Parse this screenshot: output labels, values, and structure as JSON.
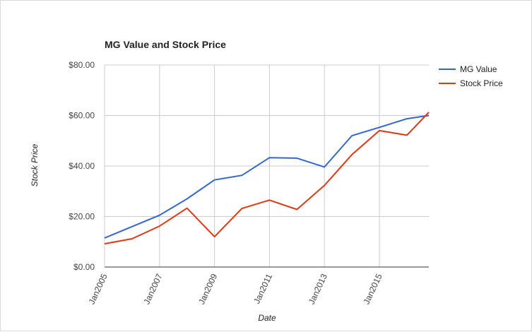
{
  "chart_data": {
    "type": "line",
    "title": "MG Value and Stock Price",
    "xlabel": "Date",
    "ylabel": "Stock Price",
    "x_ticks": [
      "Jan2005",
      "Jan2007",
      "Jan2009",
      "Jan2011",
      "Jan2013",
      "Jan2015"
    ],
    "y_ticks": [
      "$0.00",
      "$20.00",
      "$40.00",
      "$60.00",
      "$80.00"
    ],
    "ylim": [
      0,
      80
    ],
    "xlim": [
      2005.0,
      2016.8
    ],
    "grid": true,
    "legend_position": "right",
    "series": [
      {
        "name": "MG Value",
        "color": "#3366cc",
        "points": [
          [
            2005.0,
            11.5
          ],
          [
            2006.0,
            16.0
          ],
          [
            2007.0,
            20.5
          ],
          [
            2008.0,
            27.0
          ],
          [
            2009.0,
            34.5
          ],
          [
            2010.0,
            36.3
          ],
          [
            2011.0,
            43.3
          ],
          [
            2012.0,
            43.1
          ],
          [
            2013.0,
            39.6
          ],
          [
            2014.0,
            52.0
          ],
          [
            2015.0,
            55.3
          ],
          [
            2016.0,
            58.7
          ],
          [
            2016.8,
            60.0
          ]
        ]
      },
      {
        "name": "Stock Price",
        "color": "#dc3912",
        "points": [
          [
            2005.0,
            9.2
          ],
          [
            2006.0,
            11.2
          ],
          [
            2007.0,
            16.2
          ],
          [
            2008.0,
            23.3
          ],
          [
            2009.0,
            12.0
          ],
          [
            2010.0,
            23.2
          ],
          [
            2011.0,
            26.5
          ],
          [
            2012.0,
            22.8
          ],
          [
            2013.0,
            32.3
          ],
          [
            2014.0,
            44.5
          ],
          [
            2015.0,
            54.0
          ],
          [
            2016.0,
            52.2
          ],
          [
            2016.8,
            61.3
          ]
        ]
      }
    ]
  }
}
